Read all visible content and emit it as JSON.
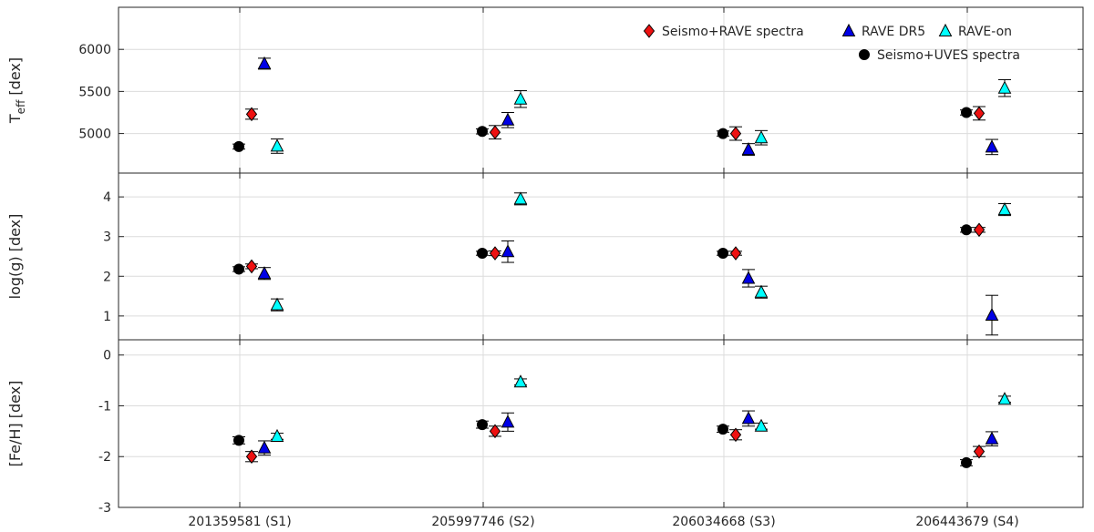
{
  "chart_data": {
    "type": "scatter",
    "categories": [
      "201359581 (S1)",
      "205997746 (S2)",
      "206034668 (S3)",
      "206443679 (S4)"
    ],
    "series": [
      {
        "name": "Seismo+RAVE spectra",
        "marker": "diamond",
        "color": "#ee1111"
      },
      {
        "name": "RAVE DR5",
        "marker": "triangle",
        "color": "#0000e6"
      },
      {
        "name": "RAVE-on",
        "marker": "triangle",
        "color": "#00ffff"
      },
      {
        "name": "Seismo+UVES spectra",
        "marker": "circle",
        "color": "#000000"
      }
    ],
    "panels": [
      {
        "id": "teff",
        "ylabel": "T",
        "ylabel_sub": "eff",
        "ylabel_suffix": " [dex]",
        "ylim": [
          4530,
          6500
        ],
        "yticks": [
          5000,
          5500,
          6000
        ],
        "ytick_labels": [
          "5000",
          "5500",
          "6000"
        ],
        "points": {
          "Seismo+UVES spectra": [
            {
              "y": 4845,
              "err": 30
            },
            {
              "y": 5025,
              "err": 30
            },
            {
              "y": 5000,
              "err": 30
            },
            {
              "y": 5250,
              "err": 30
            }
          ],
          "Seismo+RAVE spectra": [
            {
              "y": 5230,
              "err": 60
            },
            {
              "y": 5015,
              "err": 80
            },
            {
              "y": 5000,
              "err": 80
            },
            {
              "y": 5240,
              "err": 80
            }
          ],
          "RAVE DR5": [
            {
              "y": 5830,
              "err": 65
            },
            {
              "y": 5160,
              "err": 90
            },
            {
              "y": 4810,
              "err": 70
            },
            {
              "y": 4840,
              "err": 90
            }
          ],
          "RAVE-on": [
            {
              "y": 4850,
              "err": 85
            },
            {
              "y": 5410,
              "err": 100
            },
            {
              "y": 4950,
              "err": 85
            },
            {
              "y": 5540,
              "err": 100
            }
          ]
        }
      },
      {
        "id": "logg",
        "ylabel": "log(g) [dex]",
        "ylim": [
          0.4,
          4.6
        ],
        "yticks": [
          1,
          2,
          3,
          4
        ],
        "ytick_labels": [
          "1",
          "2",
          "3",
          "4"
        ],
        "points": {
          "Seismo+UVES spectra": [
            {
              "y": 2.18,
              "err": 0.06
            },
            {
              "y": 2.58,
              "err": 0.05
            },
            {
              "y": 2.58,
              "err": 0.05
            },
            {
              "y": 3.17,
              "err": 0.06
            }
          ],
          "Seismo+RAVE spectra": [
            {
              "y": 2.25,
              "err": 0.06
            },
            {
              "y": 2.58,
              "err": 0.06
            },
            {
              "y": 2.58,
              "err": 0.05
            },
            {
              "y": 3.17,
              "err": 0.06
            }
          ],
          "RAVE DR5": [
            {
              "y": 2.07,
              "err": 0.15
            },
            {
              "y": 2.62,
              "err": 0.27
            },
            {
              "y": 1.95,
              "err": 0.22
            },
            {
              "y": 1.02,
              "err": 0.5
            }
          ],
          "RAVE-on": [
            {
              "y": 1.28,
              "err": 0.15
            },
            {
              "y": 3.95,
              "err": 0.15
            },
            {
              "y": 1.6,
              "err": 0.15
            },
            {
              "y": 3.68,
              "err": 0.15
            }
          ]
        }
      },
      {
        "id": "feh",
        "ylabel": "[Fe/H] [dex]",
        "ylim": [
          -3.0,
          0.3
        ],
        "yticks": [
          -3,
          -2,
          -1,
          0
        ],
        "ytick_labels": [
          "-3",
          "-2",
          "-1",
          "0"
        ],
        "points": {
          "Seismo+UVES spectra": [
            {
              "y": -1.68,
              "err": 0.07
            },
            {
              "y": -1.37,
              "err": 0.07
            },
            {
              "y": -1.46,
              "err": 0.06
            },
            {
              "y": -2.12,
              "err": 0.06
            }
          ],
          "Seismo+RAVE spectra": [
            {
              "y": -2.0,
              "err": 0.1
            },
            {
              "y": -1.5,
              "err": 0.1
            },
            {
              "y": -1.57,
              "err": 0.1
            },
            {
              "y": -1.9,
              "err": 0.1
            }
          ],
          "RAVE DR5": [
            {
              "y": -1.83,
              "err": 0.14
            },
            {
              "y": -1.32,
              "err": 0.18
            },
            {
              "y": -1.25,
              "err": 0.15
            },
            {
              "y": -1.65,
              "err": 0.14
            }
          ],
          "RAVE-on": [
            {
              "y": -1.6,
              "err": 0.06
            },
            {
              "y": -0.53,
              "err": 0.06
            },
            {
              "y": -1.4,
              "err": 0.06
            },
            {
              "y": -0.87,
              "err": 0.06
            }
          ]
        }
      }
    ],
    "legend": {
      "placement": "top-right",
      "rows": [
        [
          "Seismo+RAVE spectra",
          "RAVE DR5",
          "RAVE-on"
        ],
        [
          "Seismo+UVES spectra"
        ]
      ]
    },
    "grid": true
  }
}
